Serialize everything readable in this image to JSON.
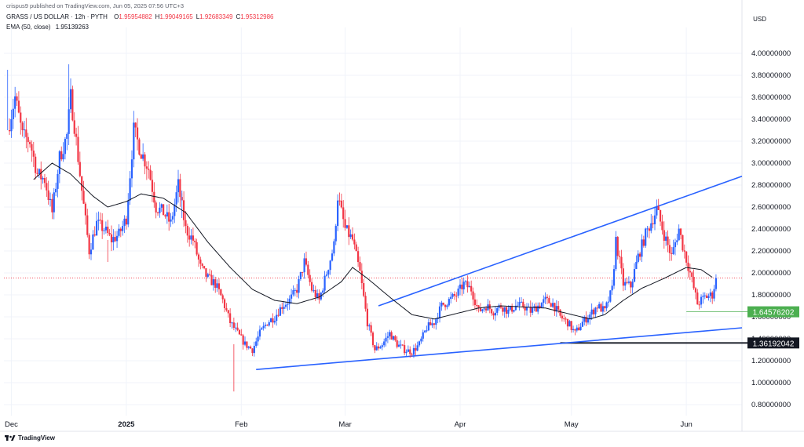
{
  "header": {
    "publisher": "crispus9 published on TradingView.com, Jun 05, 2025 07:56 UTC+3",
    "symbol": "GRASS / US DOLLAR · 12h · PYTH",
    "ohlc": [
      {
        "k": "O",
        "v": "1.95954882"
      },
      {
        "k": "H",
        "v": "1.99049165"
      },
      {
        "k": "L",
        "v": "1.92683349"
      },
      {
        "k": "C",
        "v": "1.95312986"
      }
    ],
    "ema_label": "EMA (50, close)",
    "ema_value": "1.95139263",
    "currency": "USD"
  },
  "footer": {
    "brand": "TradingView",
    "logo": "tradingview-logo-icon"
  },
  "colors": {
    "up": "#2962ff",
    "down": "#f23645",
    "ema": "#131722",
    "trendline": "#2962ff",
    "green_label": "#4caf50",
    "black_label": "#131722",
    "grid": "#f0f3fa"
  },
  "chart_data": {
    "type": "candlestick",
    "title": "GRASS / US DOLLAR · 12h · PYTH",
    "ylabel": "USD",
    "ylim": [
      0.7,
      4.2
    ],
    "y_ticks": [
      "4.00000000",
      "3.80000000",
      "3.60000000",
      "3.40000000",
      "3.20000000",
      "3.00000000",
      "2.80000000",
      "2.60000000",
      "2.40000000",
      "2.20000000",
      "2.00000000",
      "1.80000000",
      "1.60000000",
      "1.40000000",
      "1.20000000",
      "1.00000000",
      "0.80000000"
    ],
    "x_ticks": [
      {
        "label": "Dec",
        "day": 0,
        "bold": false
      },
      {
        "label": "2025",
        "day": 31,
        "bold": true
      },
      {
        "label": "Feb",
        "day": 62,
        "bold": false
      },
      {
        "label": "Mar",
        "day": 90,
        "bold": false
      },
      {
        "label": "Apr",
        "day": 121,
        "bold": false
      },
      {
        "label": "May",
        "day": 151,
        "bold": false
      },
      {
        "label": "Jun",
        "day": 182,
        "bold": false
      }
    ],
    "x_range_days": [
      -2,
      197
    ],
    "close_anchors": [
      [
        -1,
        3.3
      ],
      [
        1,
        3.6
      ],
      [
        3,
        3.25
      ],
      [
        5,
        3.2
      ],
      [
        7,
        2.9
      ],
      [
        9,
        2.85
      ],
      [
        11,
        2.55
      ],
      [
        13,
        3.05
      ],
      [
        15,
        3.25
      ],
      [
        16,
        3.6
      ],
      [
        17,
        3.35
      ],
      [
        19,
        2.75
      ],
      [
        21,
        2.2
      ],
      [
        23,
        2.45
      ],
      [
        25,
        2.4
      ],
      [
        27,
        2.3
      ],
      [
        29,
        2.35
      ],
      [
        31,
        2.5
      ],
      [
        33,
        3.3
      ],
      [
        35,
        3.1
      ],
      [
        37,
        2.95
      ],
      [
        39,
        2.6
      ],
      [
        41,
        2.55
      ],
      [
        43,
        2.45
      ],
      [
        45,
        2.8
      ],
      [
        47,
        2.4
      ],
      [
        49,
        2.3
      ],
      [
        51,
        2.05
      ],
      [
        53,
        1.95
      ],
      [
        55,
        1.9
      ],
      [
        57,
        1.75
      ],
      [
        59,
        1.55
      ],
      [
        61,
        1.45
      ],
      [
        63,
        1.35
      ],
      [
        65,
        1.3
      ],
      [
        67,
        1.45
      ],
      [
        69,
        1.55
      ],
      [
        71,
        1.6
      ],
      [
        73,
        1.7
      ],
      [
        75,
        1.75
      ],
      [
        77,
        1.85
      ],
      [
        79,
        2.1
      ],
      [
        81,
        1.85
      ],
      [
        83,
        1.75
      ],
      [
        85,
        2.0
      ],
      [
        87,
        2.25
      ],
      [
        88,
        2.7
      ],
      [
        90,
        2.4
      ],
      [
        92,
        2.3
      ],
      [
        94,
        2.0
      ],
      [
        96,
        1.55
      ],
      [
        98,
        1.3
      ],
      [
        100,
        1.35
      ],
      [
        102,
        1.45
      ],
      [
        104,
        1.35
      ],
      [
        106,
        1.3
      ],
      [
        108,
        1.28
      ],
      [
        110,
        1.35
      ],
      [
        112,
        1.5
      ],
      [
        114,
        1.55
      ],
      [
        116,
        1.7
      ],
      [
        118,
        1.75
      ],
      [
        120,
        1.8
      ],
      [
        122,
        1.9
      ],
      [
        124,
        1.85
      ],
      [
        126,
        1.65
      ],
      [
        128,
        1.7
      ],
      [
        130,
        1.65
      ],
      [
        132,
        1.7
      ],
      [
        134,
        1.65
      ],
      [
        136,
        1.7
      ],
      [
        138,
        1.7
      ],
      [
        140,
        1.65
      ],
      [
        142,
        1.7
      ],
      [
        144,
        1.75
      ],
      [
        146,
        1.72
      ],
      [
        148,
        1.6
      ],
      [
        150,
        1.55
      ],
      [
        152,
        1.45
      ],
      [
        154,
        1.55
      ],
      [
        156,
        1.62
      ],
      [
        158,
        1.7
      ],
      [
        160,
        1.65
      ],
      [
        162,
        1.85
      ],
      [
        163,
        2.3
      ],
      [
        165,
        1.9
      ],
      [
        167,
        1.88
      ],
      [
        169,
        2.15
      ],
      [
        171,
        2.35
      ],
      [
        173,
        2.5
      ],
      [
        174,
        2.58
      ],
      [
        176,
        2.35
      ],
      [
        178,
        2.15
      ],
      [
        180,
        2.4
      ],
      [
        181,
        2.25
      ],
      [
        183,
        2.0
      ],
      [
        185,
        1.72
      ],
      [
        187,
        1.78
      ],
      [
        189,
        1.8
      ],
      [
        190,
        1.95
      ]
    ],
    "ema_anchors": [
      [
        6,
        2.85
      ],
      [
        11,
        3.0
      ],
      [
        16,
        2.9
      ],
      [
        22,
        2.7
      ],
      [
        26,
        2.6
      ],
      [
        31,
        2.65
      ],
      [
        35,
        2.72
      ],
      [
        41,
        2.68
      ],
      [
        47,
        2.55
      ],
      [
        53,
        2.28
      ],
      [
        59,
        2.05
      ],
      [
        65,
        1.85
      ],
      [
        71,
        1.75
      ],
      [
        77,
        1.72
      ],
      [
        83,
        1.78
      ],
      [
        89,
        1.92
      ],
      [
        92,
        2.05
      ],
      [
        96,
        1.95
      ],
      [
        102,
        1.78
      ],
      [
        108,
        1.62
      ],
      [
        114,
        1.58
      ],
      [
        120,
        1.63
      ],
      [
        126,
        1.68
      ],
      [
        132,
        1.7
      ],
      [
        138,
        1.69
      ],
      [
        144,
        1.68
      ],
      [
        150,
        1.63
      ],
      [
        156,
        1.58
      ],
      [
        160,
        1.62
      ],
      [
        165,
        1.75
      ],
      [
        170,
        1.86
      ],
      [
        176,
        1.95
      ],
      [
        182,
        2.05
      ],
      [
        186,
        2.03
      ],
      [
        189,
        1.96
      ]
    ],
    "trendlines": [
      {
        "name": "upper",
        "from": [
          99,
          1.7
        ],
        "to": [
          197,
          2.88
        ]
      },
      {
        "name": "lower",
        "from": [
          66,
          1.12
        ],
        "to": [
          197,
          1.5
        ]
      }
    ],
    "hlines": [
      {
        "name": "current-price",
        "value": 1.953,
        "style": "dotted-red"
      },
      {
        "name": "support",
        "value": 1.36192042,
        "from_day": 148,
        "label": "1.36192042",
        "style": "black"
      },
      {
        "name": "marker",
        "value": 1.64576202,
        "from_day": 182,
        "label": "1.64576202",
        "style": "green"
      }
    ],
    "last_close": 1.95312986
  }
}
